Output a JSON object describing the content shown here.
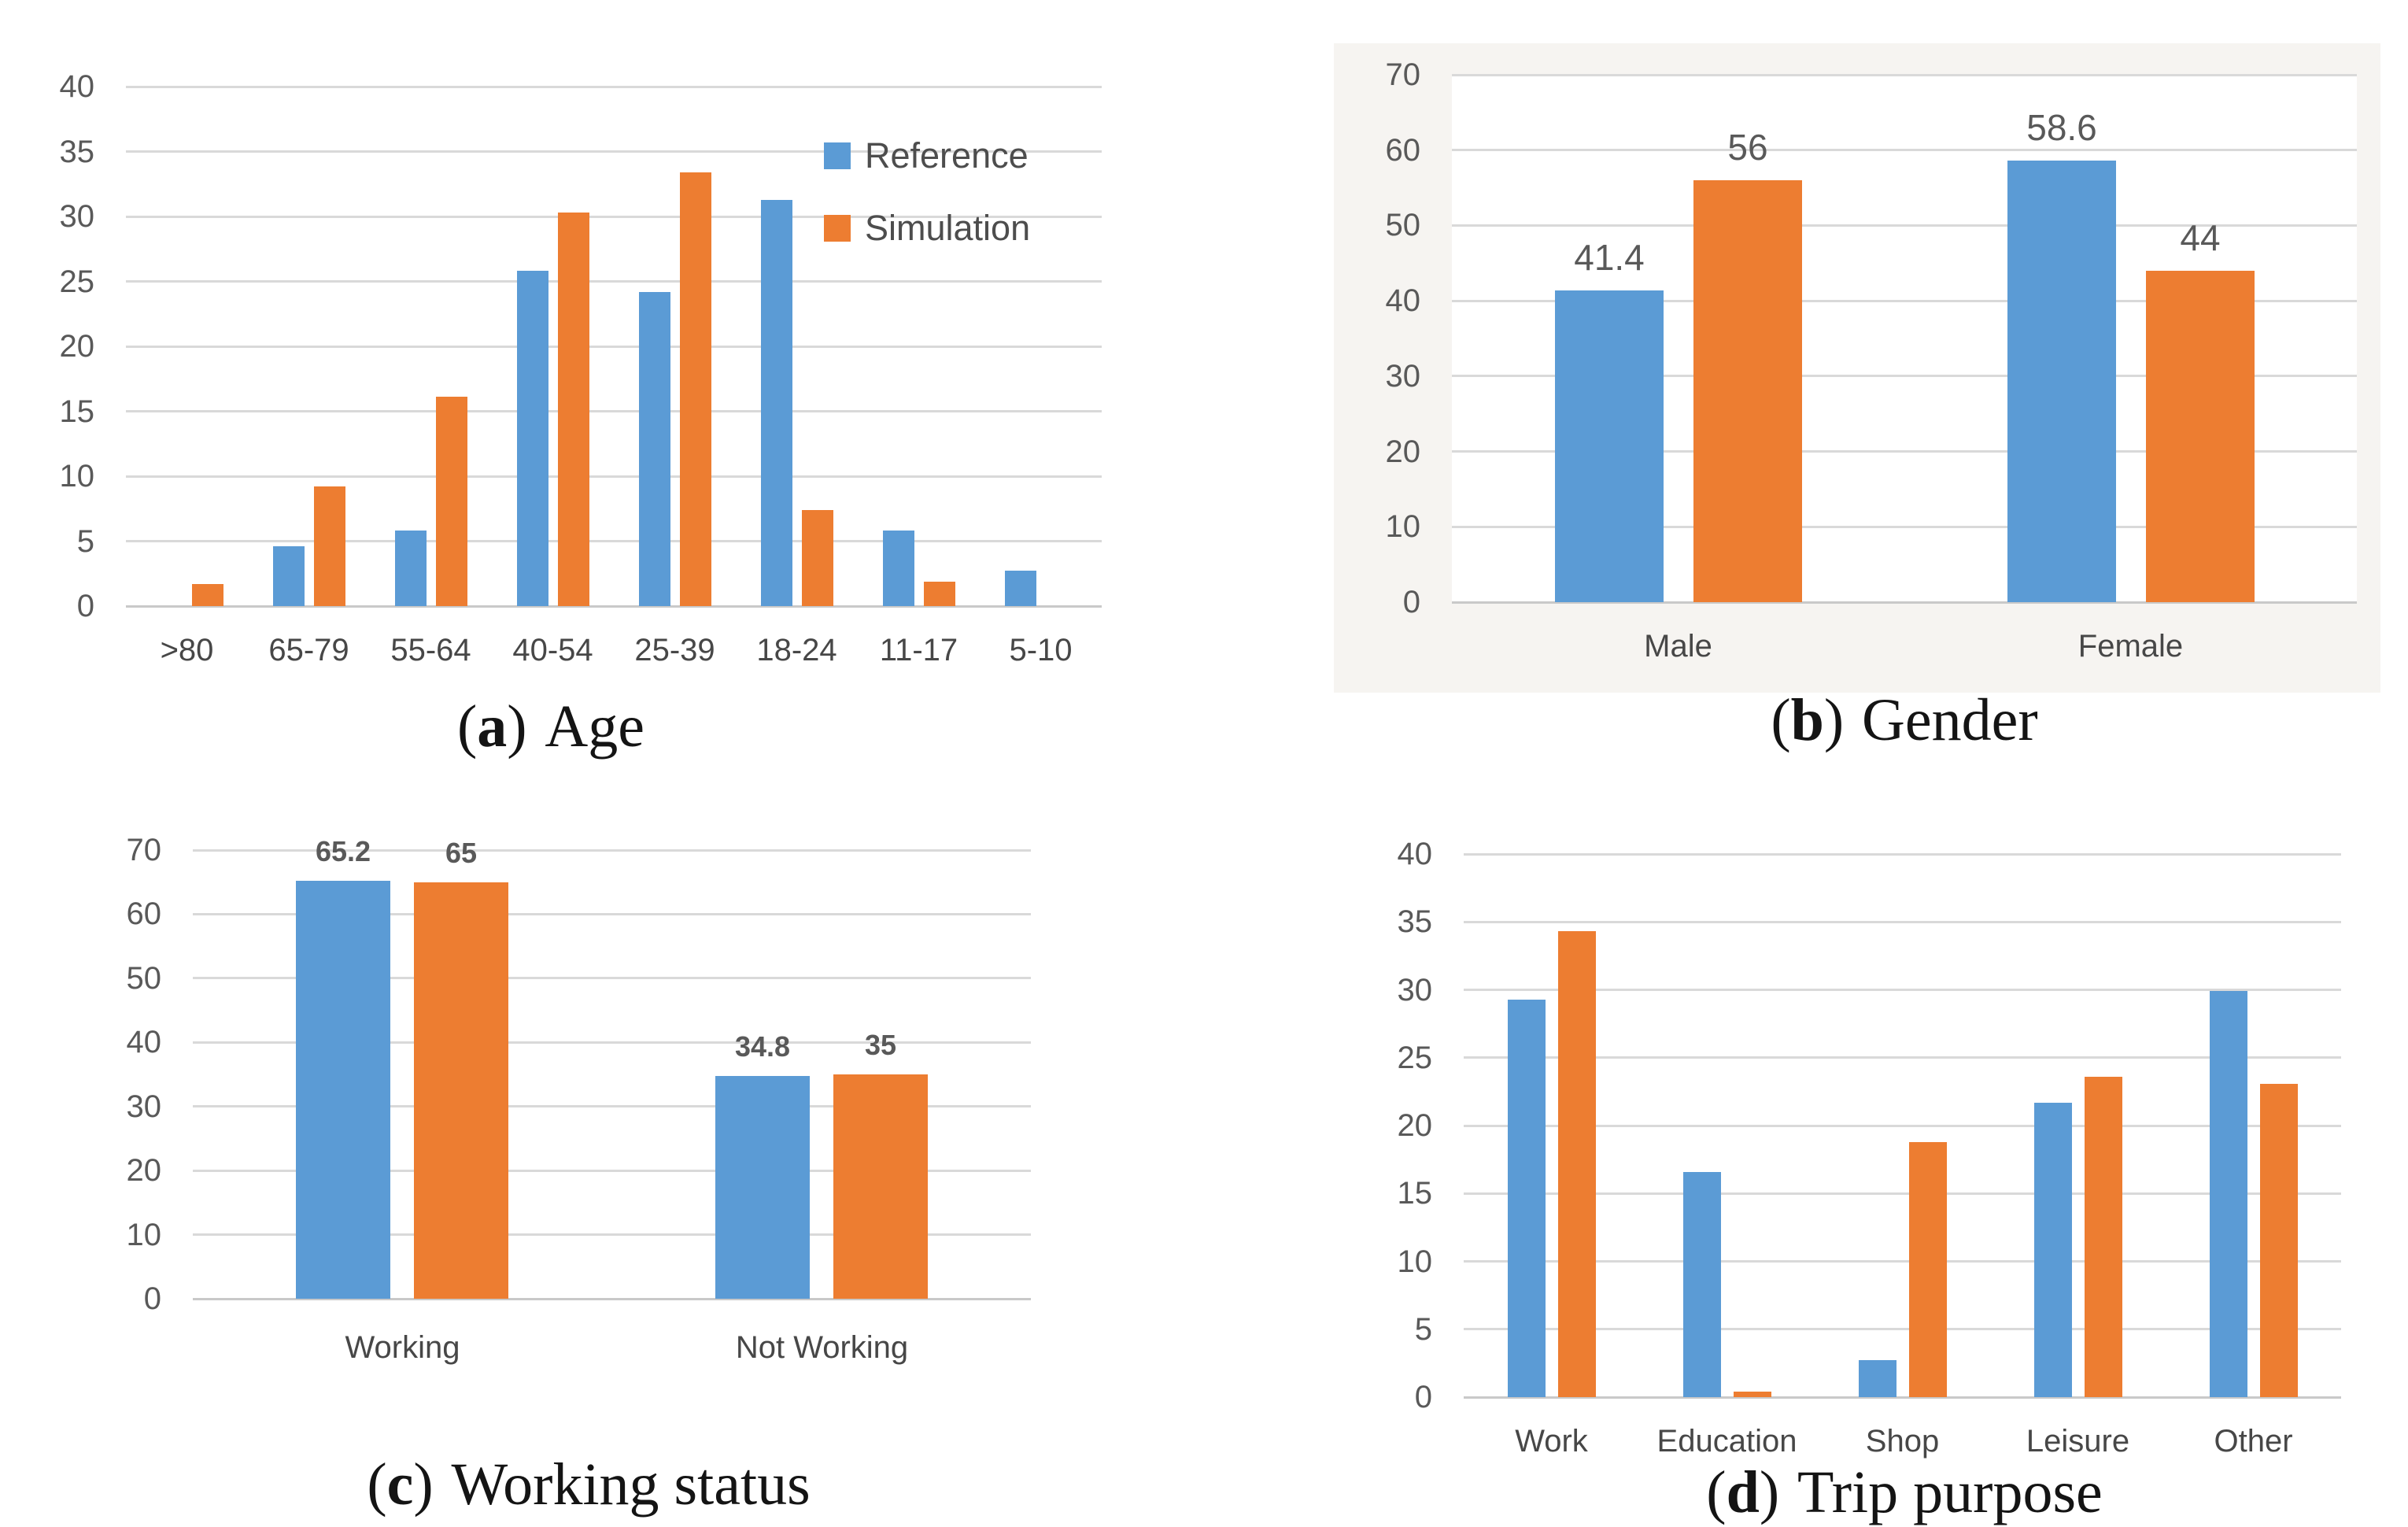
{
  "figure": {
    "series_colors": {
      "Reference": "#5B9BD5",
      "Simulation": "#ED7D31"
    },
    "grid_color": "#D9D9D9",
    "zero_line_color": "#C9C9C9",
    "tick_color": "#595959",
    "category_color": "#474747",
    "data_label_color": "#595959",
    "panel_bg_color": "#F6F4F1"
  },
  "legend": {
    "items": [
      {
        "label": "Reference",
        "color": "#5B9BD5"
      },
      {
        "label": "Simulation",
        "color": "#ED7D31"
      }
    ]
  },
  "chart_data": [
    {
      "id": "age",
      "type": "bar",
      "caption": {
        "open": "(",
        "letter": "a",
        "close": ")",
        "text": "Age"
      },
      "categories": [
        ">80",
        "65-79",
        "55-64",
        "40-54",
        "25-39",
        "18-24",
        "11-17",
        "5-10"
      ],
      "series": [
        {
          "name": "Reference",
          "values": [
            0,
            4.6,
            5.8,
            25.8,
            24.2,
            31.3,
            5.8,
            2.7
          ]
        },
        {
          "name": "Simulation",
          "values": [
            1.7,
            9.2,
            16.1,
            30.3,
            33.4,
            7.4,
            1.9,
            0
          ]
        }
      ],
      "ylim": [
        0,
        40
      ],
      "ytick_step": 5,
      "grid": true,
      "legend_position": "upper-right",
      "show_data_labels": false
    },
    {
      "id": "gender",
      "type": "bar",
      "caption": {
        "open": "(",
        "letter": "b",
        "close": ")",
        "text": "Gender"
      },
      "categories": [
        "Male",
        "Female"
      ],
      "series": [
        {
          "name": "Reference",
          "values": [
            41.4,
            58.6
          ]
        },
        {
          "name": "Simulation",
          "values": [
            56,
            44
          ]
        }
      ],
      "ylim": [
        0,
        70
      ],
      "ytick_step": 10,
      "grid": true,
      "legend_position": "none",
      "show_data_labels": true
    },
    {
      "id": "working",
      "type": "bar",
      "caption": {
        "open": "(",
        "letter": "c",
        "close": ")",
        "text": "Working status"
      },
      "categories": [
        "Working",
        "Not Working"
      ],
      "series": [
        {
          "name": "Reference",
          "values": [
            65.2,
            34.8
          ]
        },
        {
          "name": "Simulation",
          "values": [
            65,
            35
          ]
        }
      ],
      "ylim": [
        0,
        70
      ],
      "ytick_step": 10,
      "grid": true,
      "legend_position": "none",
      "show_data_labels": true
    },
    {
      "id": "trip",
      "type": "bar",
      "caption": {
        "open": "(",
        "letter": "d",
        "close": ")",
        "text": "Trip purpose"
      },
      "categories": [
        "Work",
        "Education",
        "Shop",
        "Leisure",
        "Other"
      ],
      "series": [
        {
          "name": "Reference",
          "values": [
            29.3,
            16.6,
            2.7,
            21.7,
            29.9
          ]
        },
        {
          "name": "Simulation",
          "values": [
            34.3,
            0.4,
            18.8,
            23.6,
            23.1
          ]
        }
      ],
      "ylim": [
        0,
        40
      ],
      "ytick_step": 5,
      "grid": true,
      "legend_position": "none",
      "show_data_labels": false
    }
  ]
}
